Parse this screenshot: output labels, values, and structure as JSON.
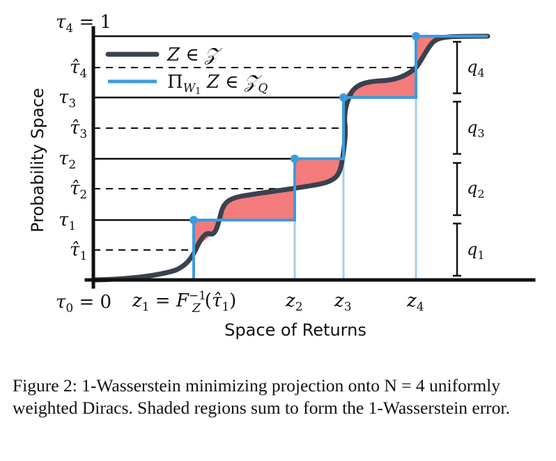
{
  "diagram": {
    "y_axis_label": "Probability Space",
    "x_axis_label": "Space of Returns",
    "tau_labels": {
      "tau4": "τ4 = 1",
      "tau3": "τ3",
      "tau2": "τ2",
      "tau1": "τ1",
      "tau0": "τ0 = 0"
    },
    "tau_hat_labels": {
      "tau_hat4": "τ̂4",
      "tau_hat3": "τ̂3",
      "tau_hat2": "τ̂2",
      "tau_hat1": "τ̂1"
    },
    "z_labels": {
      "z1": "z1 = F_Z^{-1}(τ̂1)",
      "z2": "z2",
      "z3": "z3",
      "z4": "z4"
    },
    "q_labels": {
      "q1": "q1",
      "q2": "q2",
      "q3": "q3",
      "q4": "q4"
    },
    "legend": {
      "z_entry": "Z ∈ 𝒵",
      "proj_entry": "Π_{W1} Z ∈ 𝒵_Q"
    },
    "colors": {
      "cdf_curve": "#3a4150",
      "projection": "#3d9bdc",
      "projection_light": "#a7cdea",
      "shaded_region": "#f47b7b",
      "axis": "#111111"
    }
  },
  "caption": {
    "text": "Figure 2: 1-Wasserstein minimizing projection onto N = 4 uniformly weighted Diracs. Shaded regions sum to form the 1-Wasserstein error."
  }
}
